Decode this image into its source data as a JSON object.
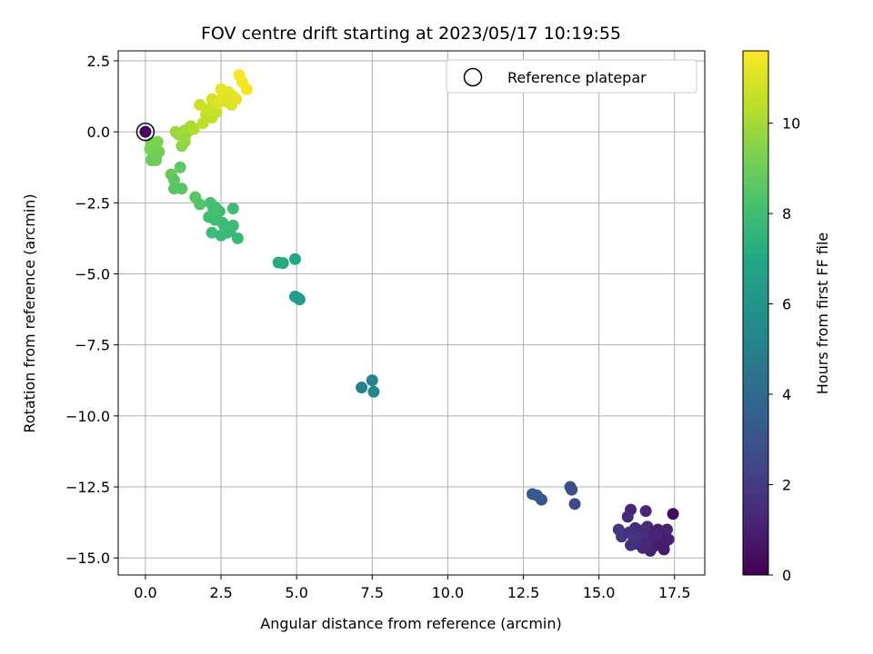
{
  "chart_data": {
    "type": "scatter",
    "title": "FOV centre drift starting at 2023/05/17 10:19:55",
    "xlabel": "Angular distance from reference (arcmin)",
    "ylabel": "Rotation from reference (arcmin)",
    "xlim": [
      -0.9,
      18.5
    ],
    "ylim": [
      -15.6,
      2.85
    ],
    "xticks": [
      0.0,
      2.5,
      5.0,
      7.5,
      10.0,
      12.5,
      15.0,
      17.5
    ],
    "xtick_labels": [
      "0.0",
      "2.5",
      "5.0",
      "7.5",
      "10.0",
      "12.5",
      "15.0",
      "17.5"
    ],
    "yticks": [
      2.5,
      0.0,
      -2.5,
      -5.0,
      -7.5,
      -10.0,
      -12.5,
      -15.0
    ],
    "ytick_labels": [
      "2.5",
      "0.0",
      "−2.5",
      "−5.0",
      "−7.5",
      "−10.0",
      "−12.5",
      "−15.0"
    ],
    "grid": true,
    "legend": {
      "placement": "upper right",
      "entries": [
        "Reference platepar"
      ]
    },
    "reference_point": {
      "x": 0.0,
      "y": 0.0,
      "marker": "open circle"
    },
    "colorbar": {
      "label": "Hours from first FF file",
      "colormap": "viridis",
      "range": [
        0,
        11.6
      ],
      "ticks": [
        0,
        2,
        4,
        6,
        8,
        10
      ],
      "tick_labels": [
        "0",
        "2",
        "4",
        "6",
        "8",
        "10"
      ]
    },
    "points": [
      {
        "x": 0.0,
        "y": 0.0,
        "c": 0.1
      },
      {
        "x": 17.45,
        "y": -13.45,
        "c": 0.3
      },
      {
        "x": 16.05,
        "y": -13.3,
        "c": 1.2
      },
      {
        "x": 16.55,
        "y": -13.35,
        "c": 1.3
      },
      {
        "x": 15.95,
        "y": -13.55,
        "c": 1.4
      },
      {
        "x": 15.65,
        "y": -14.0,
        "c": 1.9
      },
      {
        "x": 15.75,
        "y": -14.25,
        "c": 1.9
      },
      {
        "x": 16.0,
        "y": -14.1,
        "c": 1.6
      },
      {
        "x": 16.2,
        "y": -13.95,
        "c": 1.5
      },
      {
        "x": 16.3,
        "y": -14.3,
        "c": 1.3
      },
      {
        "x": 16.45,
        "y": -14.05,
        "c": 1.2
      },
      {
        "x": 16.6,
        "y": -13.9,
        "c": 1.4
      },
      {
        "x": 16.75,
        "y": -14.1,
        "c": 1.1
      },
      {
        "x": 16.85,
        "y": -14.4,
        "c": 0.9
      },
      {
        "x": 16.95,
        "y": -14.0,
        "c": 1.0
      },
      {
        "x": 17.05,
        "y": -14.25,
        "c": 0.8
      },
      {
        "x": 17.15,
        "y": -14.5,
        "c": 0.9
      },
      {
        "x": 17.3,
        "y": -14.35,
        "c": 1.0
      },
      {
        "x": 17.25,
        "y": -14.0,
        "c": 1.1
      },
      {
        "x": 17.15,
        "y": -14.7,
        "c": 0.8
      },
      {
        "x": 16.8,
        "y": -14.6,
        "c": 1.0
      },
      {
        "x": 16.7,
        "y": -14.75,
        "c": 1.1
      },
      {
        "x": 16.45,
        "y": -14.65,
        "c": 1.2
      },
      {
        "x": 16.25,
        "y": -14.5,
        "c": 1.4
      },
      {
        "x": 16.05,
        "y": -14.55,
        "c": 1.5
      },
      {
        "x": 16.4,
        "y": -14.2,
        "c": 1.6
      },
      {
        "x": 16.15,
        "y": -14.3,
        "c": 1.7
      },
      {
        "x": 16.6,
        "y": -14.45,
        "c": 1.3
      },
      {
        "x": 17.0,
        "y": -14.55,
        "c": 0.9
      },
      {
        "x": 16.9,
        "y": -14.2,
        "c": 1.2
      },
      {
        "x": 16.5,
        "y": -14.0,
        "c": 1.5
      },
      {
        "x": 12.8,
        "y": -12.75,
        "c": 3.4
      },
      {
        "x": 12.95,
        "y": -12.8,
        "c": 3.3
      },
      {
        "x": 13.1,
        "y": -12.95,
        "c": 3.2
      },
      {
        "x": 14.05,
        "y": -12.5,
        "c": 2.8
      },
      {
        "x": 14.1,
        "y": -12.6,
        "c": 2.7
      },
      {
        "x": 14.2,
        "y": -13.1,
        "c": 2.6
      },
      {
        "x": 7.15,
        "y": -9.0,
        "c": 5.1
      },
      {
        "x": 7.5,
        "y": -8.75,
        "c": 5.2
      },
      {
        "x": 7.55,
        "y": -9.15,
        "c": 5.3
      },
      {
        "x": 4.4,
        "y": -4.6,
        "c": 7.0
      },
      {
        "x": 4.55,
        "y": -4.62,
        "c": 7.1
      },
      {
        "x": 4.95,
        "y": -4.48,
        "c": 6.9
      },
      {
        "x": 4.95,
        "y": -5.8,
        "c": 6.6
      },
      {
        "x": 5.05,
        "y": -5.85,
        "c": 6.5
      },
      {
        "x": 5.1,
        "y": -5.9,
        "c": 6.4
      },
      {
        "x": 2.15,
        "y": -2.5,
        "c": 8.2
      },
      {
        "x": 2.3,
        "y": -2.65,
        "c": 8.1
      },
      {
        "x": 2.45,
        "y": -2.8,
        "c": 8.0
      },
      {
        "x": 2.1,
        "y": -3.0,
        "c": 8.1
      },
      {
        "x": 2.3,
        "y": -3.1,
        "c": 8.0
      },
      {
        "x": 2.55,
        "y": -3.2,
        "c": 7.9
      },
      {
        "x": 2.9,
        "y": -2.7,
        "c": 8.0
      },
      {
        "x": 2.2,
        "y": -3.55,
        "c": 7.9
      },
      {
        "x": 2.5,
        "y": -3.65,
        "c": 7.8
      },
      {
        "x": 2.8,
        "y": -3.5,
        "c": 7.8
      },
      {
        "x": 2.9,
        "y": -3.3,
        "c": 7.9
      },
      {
        "x": 3.05,
        "y": -3.75,
        "c": 7.7
      },
      {
        "x": 2.7,
        "y": -3.55,
        "c": 7.8
      },
      {
        "x": 2.6,
        "y": -3.3,
        "c": 7.9
      },
      {
        "x": 2.25,
        "y": -2.75,
        "c": 8.1
      },
      {
        "x": 1.15,
        "y": -1.25,
        "c": 8.7
      },
      {
        "x": 0.85,
        "y": -1.5,
        "c": 8.8
      },
      {
        "x": 0.95,
        "y": -1.7,
        "c": 8.7
      },
      {
        "x": 0.95,
        "y": -2.0,
        "c": 8.6
      },
      {
        "x": 1.2,
        "y": -2.0,
        "c": 8.6
      },
      {
        "x": 1.65,
        "y": -2.3,
        "c": 8.5
      },
      {
        "x": 1.8,
        "y": -2.55,
        "c": 8.4
      },
      {
        "x": 0.2,
        "y": -0.4,
        "c": 9.2
      },
      {
        "x": 0.3,
        "y": -0.6,
        "c": 9.1
      },
      {
        "x": 0.25,
        "y": -0.8,
        "c": 9.0
      },
      {
        "x": 0.35,
        "y": -1.0,
        "c": 9.0
      },
      {
        "x": 0.45,
        "y": -0.7,
        "c": 9.1
      },
      {
        "x": 0.15,
        "y": -0.6,
        "c": 9.2
      },
      {
        "x": 0.4,
        "y": -0.35,
        "c": 9.3
      },
      {
        "x": 0.2,
        "y": -1.0,
        "c": 8.9
      },
      {
        "x": 0.35,
        "y": -0.9,
        "c": 9.0
      },
      {
        "x": 1.2,
        "y": -0.5,
        "c": 9.6
      },
      {
        "x": 1.3,
        "y": -0.35,
        "c": 9.7
      },
      {
        "x": 1.1,
        "y": -0.1,
        "c": 9.8
      },
      {
        "x": 1.0,
        "y": 0.0,
        "c": 9.9
      },
      {
        "x": 1.3,
        "y": 0.05,
        "c": 10.0
      },
      {
        "x": 1.5,
        "y": 0.2,
        "c": 10.1
      },
      {
        "x": 1.4,
        "y": 0.0,
        "c": 10.0
      },
      {
        "x": 1.6,
        "y": 0.1,
        "c": 10.2
      },
      {
        "x": 1.3,
        "y": -0.2,
        "c": 9.8
      },
      {
        "x": 1.9,
        "y": 0.3,
        "c": 10.5
      },
      {
        "x": 2.0,
        "y": 0.6,
        "c": 10.6
      },
      {
        "x": 2.1,
        "y": 0.8,
        "c": 10.7
      },
      {
        "x": 1.8,
        "y": 0.95,
        "c": 10.7
      },
      {
        "x": 2.2,
        "y": 0.5,
        "c": 10.5
      },
      {
        "x": 2.35,
        "y": 0.7,
        "c": 10.6
      },
      {
        "x": 2.2,
        "y": 1.15,
        "c": 10.9
      },
      {
        "x": 2.4,
        "y": 1.0,
        "c": 11.0
      },
      {
        "x": 2.55,
        "y": 1.2,
        "c": 11.1
      },
      {
        "x": 2.7,
        "y": 1.05,
        "c": 11.0
      },
      {
        "x": 2.5,
        "y": 1.5,
        "c": 11.2
      },
      {
        "x": 2.75,
        "y": 1.4,
        "c": 11.2
      },
      {
        "x": 2.65,
        "y": 1.3,
        "c": 11.1
      },
      {
        "x": 2.9,
        "y": 1.25,
        "c": 11.1
      },
      {
        "x": 2.85,
        "y": 0.95,
        "c": 11.0
      },
      {
        "x": 3.0,
        "y": 1.15,
        "c": 11.2
      },
      {
        "x": 3.2,
        "y": 1.75,
        "c": 11.4
      },
      {
        "x": 3.1,
        "y": 2.0,
        "c": 11.5
      },
      {
        "x": 3.35,
        "y": 1.5,
        "c": 11.4
      }
    ]
  }
}
